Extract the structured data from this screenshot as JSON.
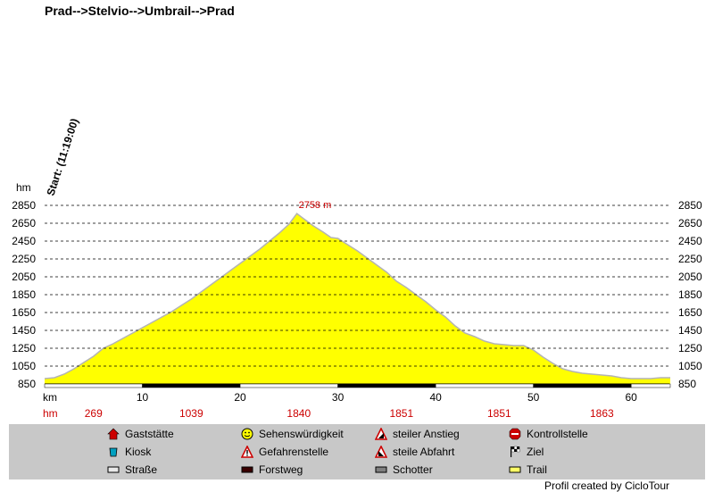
{
  "title": "Prad-->Stelvio-->Umbrail-->Prad",
  "start_label": "Start: (11:19:00)",
  "credit": "Profil created by CicloTour",
  "chart_data": {
    "type": "area",
    "y_unit": "hm",
    "x_unit": "km",
    "ylim": [
      850,
      2850
    ],
    "xlim": [
      0,
      64
    ],
    "y_ticks": [
      850,
      1050,
      1250,
      1450,
      1650,
      1850,
      2050,
      2250,
      2450,
      2650,
      2850
    ],
    "x_ticks": [
      10,
      20,
      30,
      40,
      50,
      60
    ],
    "peak_label": "2758 m",
    "peak": {
      "x": 25.8,
      "y": 2758
    },
    "fill_color": "#ffff00",
    "line_color": "#b4b4b4",
    "hm_row": [
      {
        "x": 5,
        "label": "269"
      },
      {
        "x": 15,
        "label": "1039"
      },
      {
        "x": 26,
        "label": "1840"
      },
      {
        "x": 36.5,
        "label": "1851"
      },
      {
        "x": 46.5,
        "label": "1851"
      },
      {
        "x": 57,
        "label": "1863"
      }
    ],
    "surface_segments": [
      {
        "from": 0,
        "to": 10,
        "type": "Trail"
      },
      {
        "from": 10,
        "to": 20,
        "type": "Forstweg"
      },
      {
        "from": 20,
        "to": 30,
        "type": "Trail"
      },
      {
        "from": 30,
        "to": 40,
        "type": "Forstweg"
      },
      {
        "from": 40,
        "to": 50,
        "type": "Trail"
      },
      {
        "from": 50,
        "to": 60,
        "type": "Forstweg"
      },
      {
        "from": 60,
        "to": 64,
        "type": "Trail"
      }
    ],
    "profile": [
      [
        0,
        910
      ],
      [
        1,
        920
      ],
      [
        2,
        960
      ],
      [
        3,
        1020
      ],
      [
        4,
        1090
      ],
      [
        5,
        1160
      ],
      [
        6,
        1250
      ],
      [
        7,
        1300
      ],
      [
        8,
        1360
      ],
      [
        9,
        1420
      ],
      [
        10,
        1480
      ],
      [
        11,
        1540
      ],
      [
        12,
        1600
      ],
      [
        13,
        1660
      ],
      [
        14,
        1730
      ],
      [
        15,
        1800
      ],
      [
        16,
        1880
      ],
      [
        17,
        1960
      ],
      [
        18,
        2040
      ],
      [
        19,
        2120
      ],
      [
        20,
        2200
      ],
      [
        21,
        2280
      ],
      [
        22,
        2360
      ],
      [
        23,
        2450
      ],
      [
        24,
        2540
      ],
      [
        25,
        2640
      ],
      [
        25.8,
        2758
      ],
      [
        26.5,
        2700
      ],
      [
        27.5,
        2620
      ],
      [
        28.5,
        2550
      ],
      [
        29.3,
        2490
      ],
      [
        30,
        2480
      ],
      [
        31,
        2410
      ],
      [
        32,
        2340
      ],
      [
        33,
        2260
      ],
      [
        34,
        2180
      ],
      [
        35,
        2100
      ],
      [
        36,
        2000
      ],
      [
        37,
        1930
      ],
      [
        38,
        1850
      ],
      [
        39,
        1770
      ],
      [
        40,
        1680
      ],
      [
        41,
        1600
      ],
      [
        42,
        1500
      ],
      [
        43,
        1420
      ],
      [
        44,
        1380
      ],
      [
        45,
        1330
      ],
      [
        46,
        1300
      ],
      [
        47,
        1290
      ],
      [
        48,
        1280
      ],
      [
        49,
        1280
      ],
      [
        50,
        1230
      ],
      [
        51,
        1150
      ],
      [
        52,
        1080
      ],
      [
        53,
        1020
      ],
      [
        54,
        990
      ],
      [
        55,
        970
      ],
      [
        56,
        960
      ],
      [
        57,
        950
      ],
      [
        58,
        940
      ],
      [
        59,
        920
      ],
      [
        60,
        910
      ],
      [
        61,
        910
      ],
      [
        62,
        910
      ],
      [
        63,
        920
      ],
      [
        64,
        920
      ]
    ]
  },
  "legend": [
    {
      "label": "Gaststätte",
      "icon": "house-icon",
      "color": "#cc0000"
    },
    {
      "label": "Sehenswürdigkeit",
      "icon": "smiley-icon",
      "color": "#ffff00"
    },
    {
      "label": "steiler Anstieg",
      "icon": "steep-climb-icon",
      "color": "#cc0000"
    },
    {
      "label": "Kontrollstelle",
      "icon": "stop-sign-icon",
      "color": "#cc0000"
    },
    {
      "label": "Kiosk",
      "icon": "cup-icon",
      "color": "#00a0c0"
    },
    {
      "label": "Gefahrenstelle",
      "icon": "warning-icon",
      "color": "#cc0000"
    },
    {
      "label": "steile Abfahrt",
      "icon": "steep-descent-icon",
      "color": "#cc0000"
    },
    {
      "label": "Ziel",
      "icon": "checkered-flag-icon",
      "color": "#000000"
    },
    {
      "label": "Straße",
      "icon": "road-swatch-icon",
      "color": "#e8e8e8"
    },
    {
      "label": "Forstweg",
      "icon": "forest-road-swatch-icon",
      "color": "#3a0000"
    },
    {
      "label": "Schotter",
      "icon": "gravel-swatch-icon",
      "color": "#808080"
    },
    {
      "label": "Trail",
      "icon": "trail-swatch-icon",
      "color": "#ffff66"
    }
  ]
}
